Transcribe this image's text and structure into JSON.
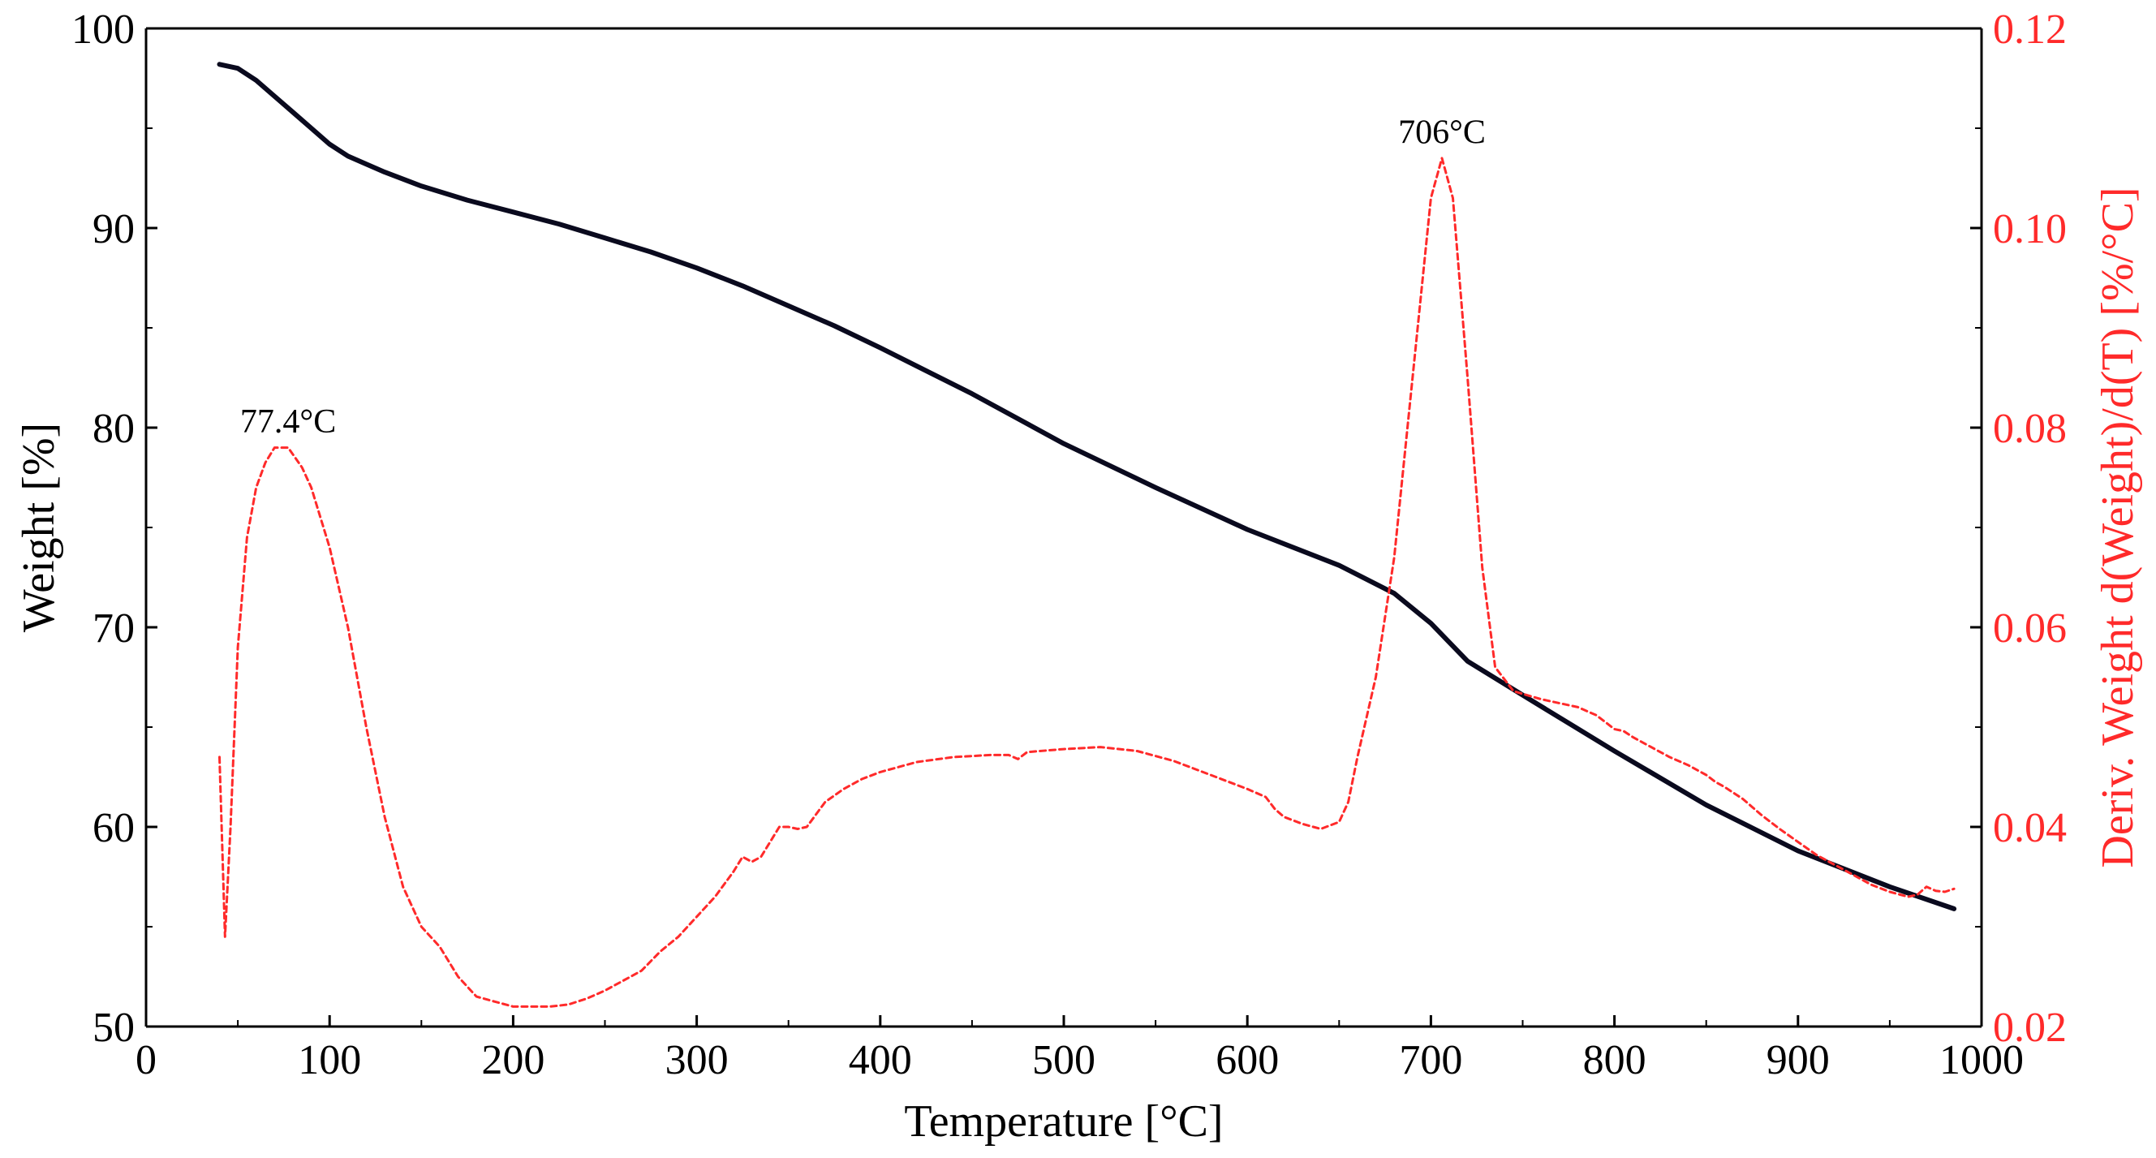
{
  "chart_data": {
    "type": "line",
    "title": "",
    "xlabel": "Temperature [°C]",
    "ylabel": "Weight [%]",
    "y2label": "Deriv. Weight d(Weight)/d(T)  [%/°C]",
    "xlim": [
      0,
      1000
    ],
    "ylim": [
      50,
      100
    ],
    "y2lim": [
      0.02,
      0.12
    ],
    "xticks": [
      "0",
      "100",
      "200",
      "300",
      "400",
      "500",
      "600",
      "700",
      "800",
      "900",
      "1000"
    ],
    "yticks": [
      "50",
      "60",
      "70",
      "80",
      "90",
      "100"
    ],
    "y2ticks": [
      "0.02",
      "0.04",
      "0.06",
      "0.08",
      "0.10",
      "0.12"
    ],
    "grid": false,
    "colors": {
      "weight": "#0a0a1e",
      "deriv": "#ff2a2a",
      "axis": "#000000",
      "right_axis_text": "#ff2a2a"
    },
    "series": [
      {
        "name": "Weight",
        "axis": "left",
        "x": [
          40,
          50,
          60,
          70,
          80,
          90,
          100,
          110,
          120,
          130,
          150,
          175,
          200,
          225,
          250,
          275,
          300,
          325,
          350,
          375,
          400,
          450,
          500,
          550,
          600,
          650,
          680,
          700,
          720,
          750,
          800,
          850,
          900,
          950,
          985
        ],
        "y": [
          98.2,
          98.0,
          97.4,
          96.6,
          95.8,
          95.0,
          94.2,
          93.6,
          93.2,
          92.8,
          92.1,
          91.4,
          90.8,
          90.2,
          89.5,
          88.8,
          88.0,
          87.1,
          86.1,
          85.1,
          84.0,
          81.7,
          79.2,
          77.0,
          74.9,
          73.1,
          71.7,
          70.2,
          68.3,
          66.6,
          63.8,
          61.1,
          58.8,
          57.0,
          55.9
        ]
      },
      {
        "name": "Deriv. Weight",
        "axis": "right",
        "style": "dashed",
        "x": [
          40,
          43,
          46,
          50,
          55,
          60,
          65,
          70,
          77.4,
          85,
          90,
          100,
          110,
          120,
          130,
          140,
          150,
          160,
          170,
          180,
          190,
          200,
          210,
          220,
          230,
          240,
          250,
          260,
          270,
          280,
          290,
          300,
          310,
          320,
          325,
          330,
          335,
          340,
          345,
          350,
          355,
          360,
          370,
          380,
          390,
          400,
          420,
          440,
          460,
          470,
          475,
          480,
          500,
          520,
          540,
          560,
          580,
          600,
          610,
          615,
          620,
          630,
          640,
          650,
          655,
          660,
          670,
          680,
          690,
          700,
          706,
          712,
          720,
          728,
          735,
          745,
          760,
          780,
          790,
          795,
          800,
          805,
          810,
          820,
          830,
          840,
          850,
          855,
          860,
          870,
          880,
          890,
          900,
          910,
          920,
          930,
          940,
          950,
          960,
          965,
          970,
          975,
          980,
          985
        ],
        "y": [
          0.047,
          0.029,
          0.04,
          0.058,
          0.069,
          0.074,
          0.0765,
          0.078,
          0.078,
          0.076,
          0.074,
          0.068,
          0.06,
          0.05,
          0.041,
          0.034,
          0.03,
          0.028,
          0.025,
          0.023,
          0.0225,
          0.022,
          0.022,
          0.022,
          0.0222,
          0.0228,
          0.0236,
          0.0246,
          0.0256,
          0.0275,
          0.029,
          0.031,
          0.033,
          0.0355,
          0.037,
          0.0365,
          0.037,
          0.0385,
          0.04,
          0.04,
          0.0398,
          0.04,
          0.0425,
          0.0438,
          0.0448,
          0.0455,
          0.0465,
          0.047,
          0.0472,
          0.0472,
          0.0468,
          0.0475,
          0.0478,
          0.048,
          0.0476,
          0.0466,
          0.0452,
          0.0438,
          0.043,
          0.0418,
          0.041,
          0.0403,
          0.0398,
          0.0405,
          0.0425,
          0.047,
          0.055,
          0.067,
          0.085,
          0.103,
          0.107,
          0.103,
          0.085,
          0.066,
          0.056,
          0.0536,
          0.0528,
          0.052,
          0.0512,
          0.0505,
          0.0498,
          0.0496,
          0.049,
          0.048,
          0.047,
          0.0462,
          0.0452,
          0.0445,
          0.044,
          0.0428,
          0.0412,
          0.0398,
          0.0385,
          0.0372,
          0.0362,
          0.0352,
          0.0342,
          0.0335,
          0.033,
          0.0332,
          0.034,
          0.0336,
          0.0335,
          0.0338
        ]
      }
    ],
    "annotations": [
      {
        "text": "77.4°C",
        "x": 77.4,
        "y": 0.0795,
        "axis": "right"
      },
      {
        "text": "706°C",
        "x": 706,
        "y": 0.1085,
        "axis": "right"
      }
    ]
  }
}
